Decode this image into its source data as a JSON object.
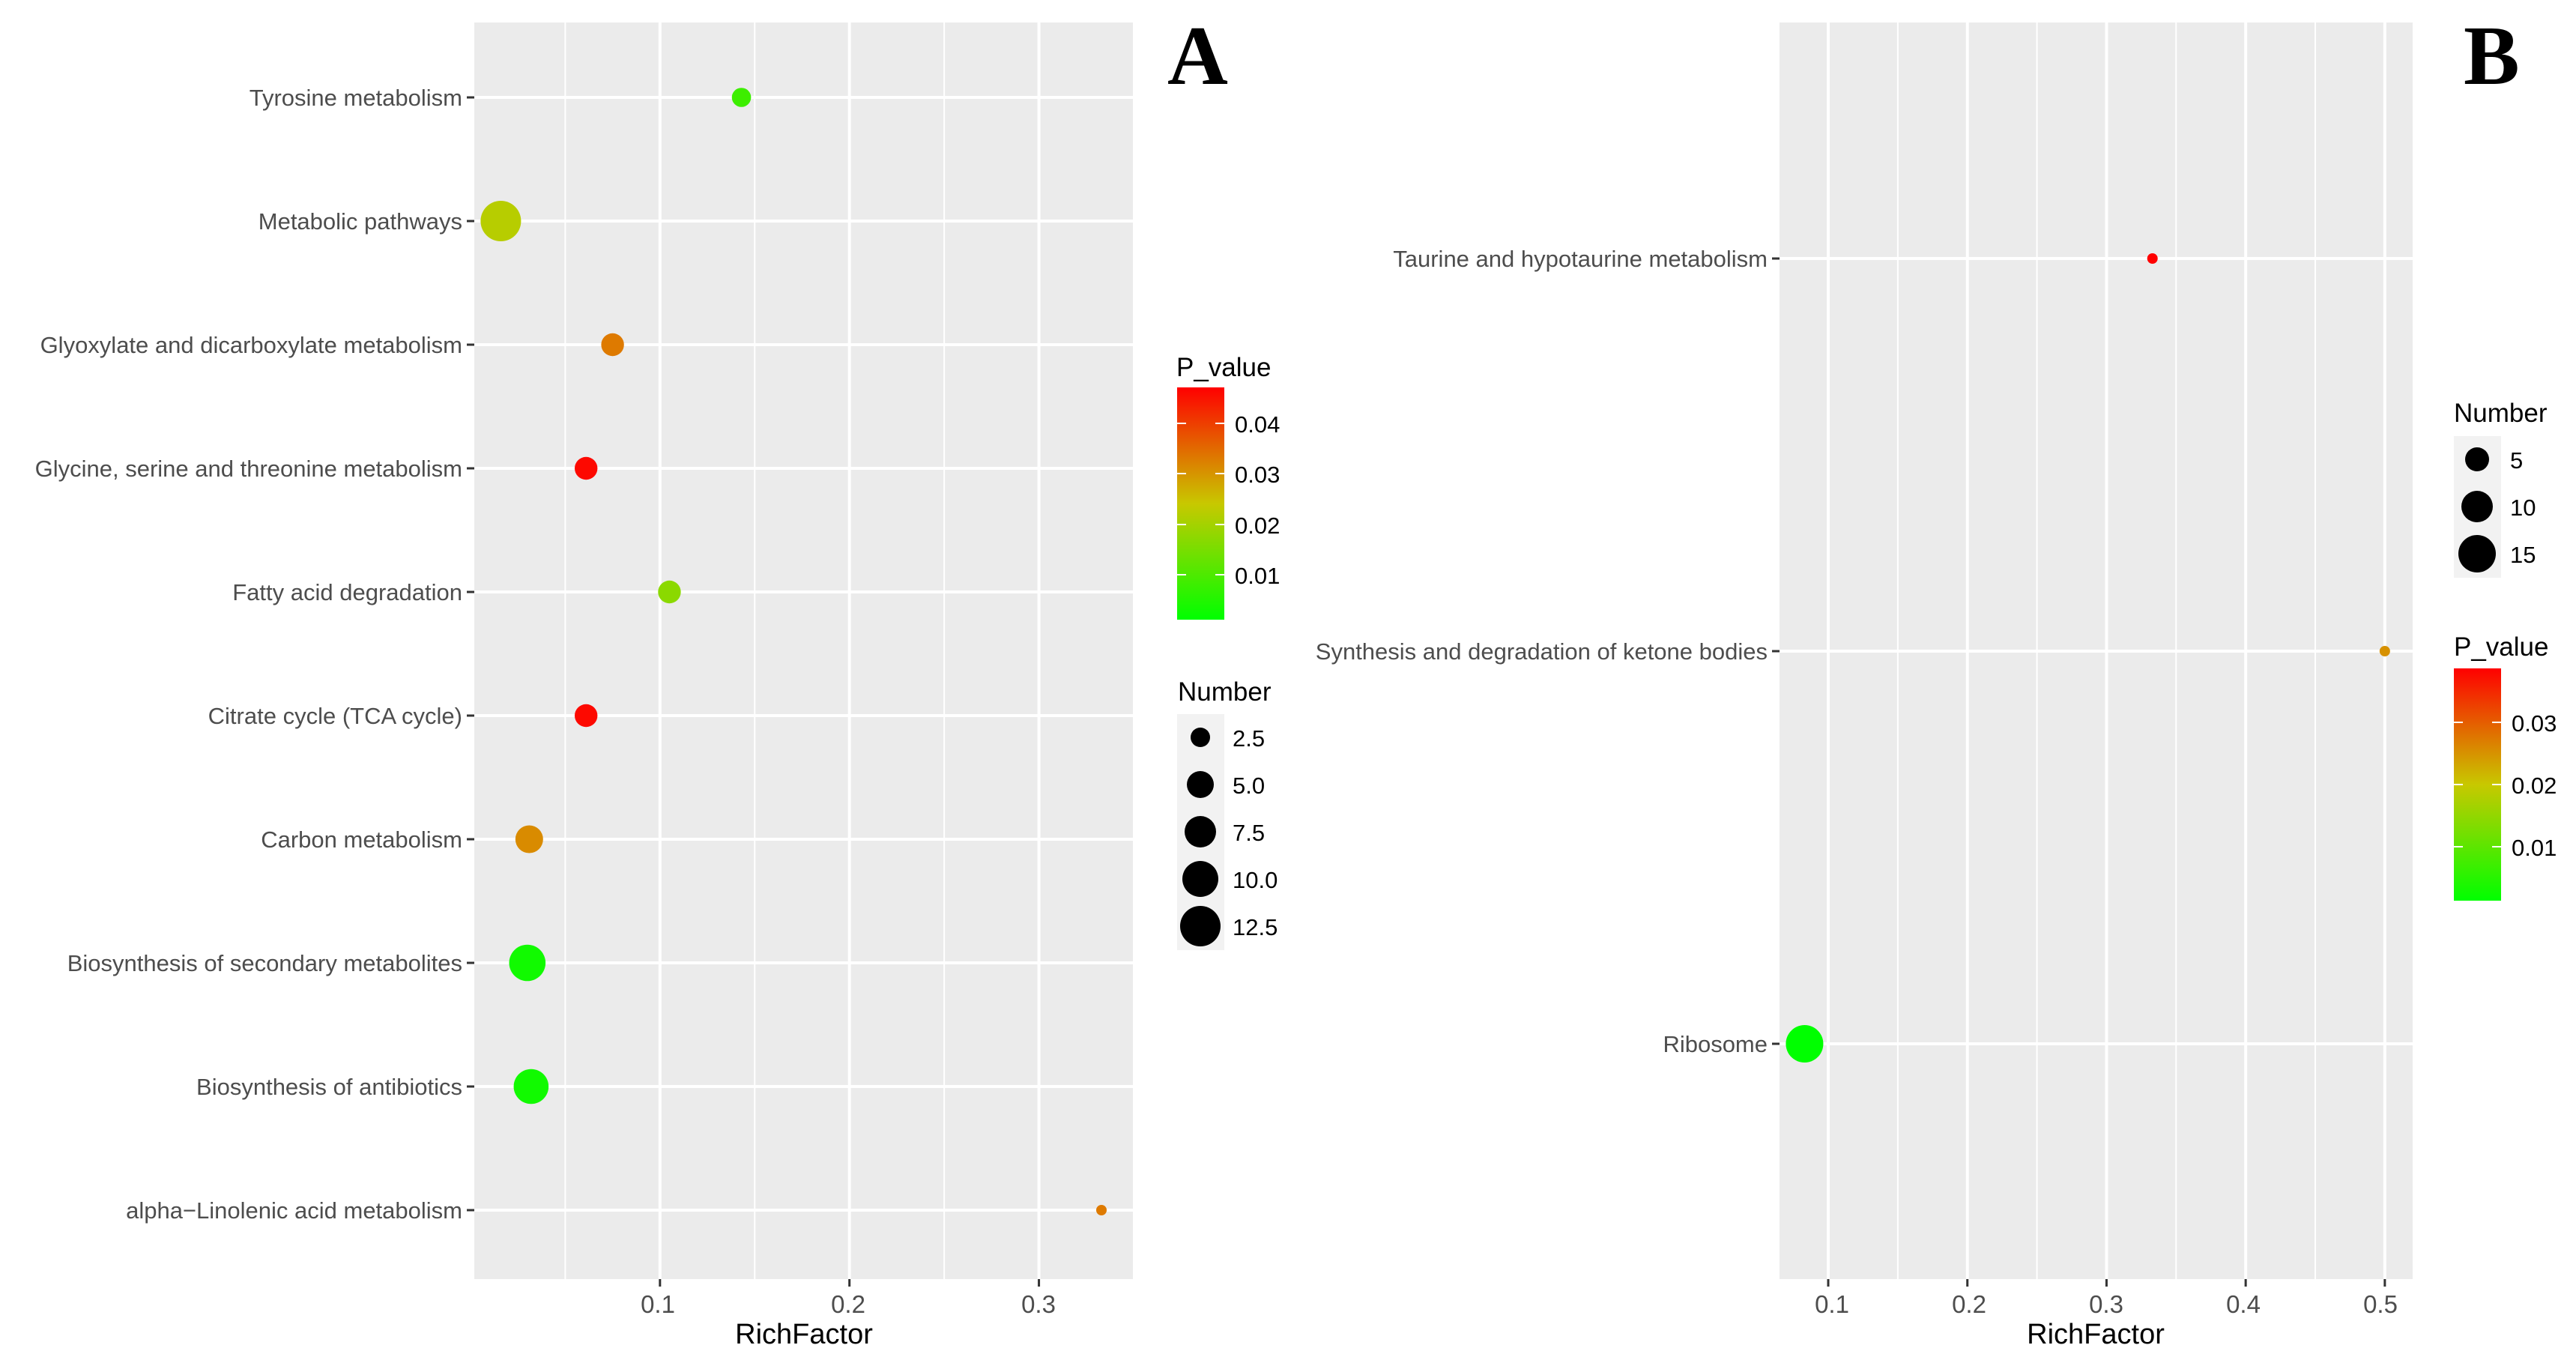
{
  "figure": {
    "panels": [
      {
        "letter": "A",
        "xlabel": "RichFactor",
        "x_ticks": [
          "0.1",
          "0.2",
          "0.3"
        ],
        "pvalue_title": "P_value",
        "pvalue_ticks": [
          "0.04",
          "0.03",
          "0.02",
          "0.01"
        ],
        "number_title": "Number",
        "number_ticks": [
          "2.5",
          "5.0",
          "7.5",
          "10.0",
          "12.5"
        ]
      },
      {
        "letter": "B",
        "xlabel": "RichFactor",
        "x_ticks": [
          "0.1",
          "0.2",
          "0.3",
          "0.4",
          "0.5"
        ],
        "number_title": "Number",
        "number_ticks": [
          "5",
          "10",
          "15"
        ],
        "pvalue_title": "P_value",
        "pvalue_ticks": [
          "0.03",
          "0.02",
          "0.01"
        ]
      }
    ]
  },
  "colors": {
    "panel_background": "#EBEBEB",
    "gridline": "#FFFFFF",
    "low_p": "#00FF00",
    "mid_p": "#FFFF00",
    "high_p": "#FF0000",
    "legend_dot": "#000000",
    "axis_text": "#4D4D4D"
  },
  "chart_data": [
    {
      "type": "scatter",
      "subtype": "bubble",
      "panel": "A",
      "xlabel": "RichFactor",
      "ylabel": "",
      "xlim": [
        0.002,
        0.35
      ],
      "x_ticks": [
        0.1,
        0.2,
        0.3
      ],
      "categories": [
        "Tyrosine metabolism",
        "Metabolic pathways",
        "Glyoxylate and dicarboxylate metabolism",
        "Glycine, serine and threonine metabolism",
        "Fatty acid degradation",
        "Citrate cycle (TCA cycle)",
        "Carbon metabolism",
        "Biosynthesis of secondary metabolites",
        "Biosynthesis of antibiotics",
        "alpha−Linolenic acid metabolism"
      ],
      "points": [
        {
          "pathway": "Tyrosine metabolism",
          "rich_factor": 0.143,
          "p_value": 0.008,
          "number": 2
        },
        {
          "pathway": "Metabolic pathways",
          "rich_factor": 0.016,
          "p_value": 0.022,
          "number": 13
        },
        {
          "pathway": "Glyoxylate and dicarboxylate metabolism",
          "rich_factor": 0.075,
          "p_value": 0.033,
          "number": 3
        },
        {
          "pathway": "Glycine, serine and threonine metabolism",
          "rich_factor": 0.061,
          "p_value": 0.046,
          "number": 3
        },
        {
          "pathway": "Fatty acid degradation",
          "rich_factor": 0.105,
          "p_value": 0.017,
          "number": 3
        },
        {
          "pathway": "Citrate cycle (TCA cycle)",
          "rich_factor": 0.061,
          "p_value": 0.046,
          "number": 3
        },
        {
          "pathway": "Carbon metabolism",
          "rich_factor": 0.031,
          "p_value": 0.031,
          "number": 5
        },
        {
          "pathway": "Biosynthesis of secondary metabolites",
          "rich_factor": 0.03,
          "p_value": 0.003,
          "number": 10
        },
        {
          "pathway": "Biosynthesis of antibiotics",
          "rich_factor": 0.032,
          "p_value": 0.003,
          "number": 9
        },
        {
          "pathway": "alpha−Linolenic acid metabolism",
          "rich_factor": 0.333,
          "p_value": 0.033,
          "number": 1
        }
      ],
      "color_scale": {
        "title": "P_value",
        "min": 0.001,
        "max": 0.047,
        "ticks": [
          0.04,
          0.03,
          0.02,
          0.01
        ]
      },
      "size_scale": {
        "title": "Number",
        "min": 1,
        "max": 13,
        "ticks": [
          2.5,
          5.0,
          7.5,
          10.0,
          12.5
        ]
      }
    },
    {
      "type": "scatter",
      "subtype": "bubble",
      "panel": "B",
      "xlabel": "RichFactor",
      "ylabel": "",
      "xlim": [
        0.065,
        0.52
      ],
      "x_ticks": [
        0.1,
        0.2,
        0.3,
        0.4,
        0.5
      ],
      "categories": [
        "Taurine and hypotaurine metabolism",
        "Synthesis and degradation of ketone bodies",
        "Ribosome"
      ],
      "points": [
        {
          "pathway": "Taurine and hypotaurine metabolism",
          "rich_factor": 0.333,
          "p_value": 0.039,
          "number": 1
        },
        {
          "pathway": "Synthesis and degradation of ketone bodies",
          "rich_factor": 0.5,
          "p_value": 0.025,
          "number": 1
        },
        {
          "pathway": "Ribosome",
          "rich_factor": 0.083,
          "p_value": 0.0005,
          "number": 15
        }
      ],
      "color_scale": {
        "title": "P_value",
        "min": 0.0005,
        "max": 0.039,
        "ticks": [
          0.03,
          0.02,
          0.01
        ]
      },
      "size_scale": {
        "title": "Number",
        "min": 1,
        "max": 15,
        "ticks": [
          5,
          10,
          15
        ]
      }
    }
  ]
}
